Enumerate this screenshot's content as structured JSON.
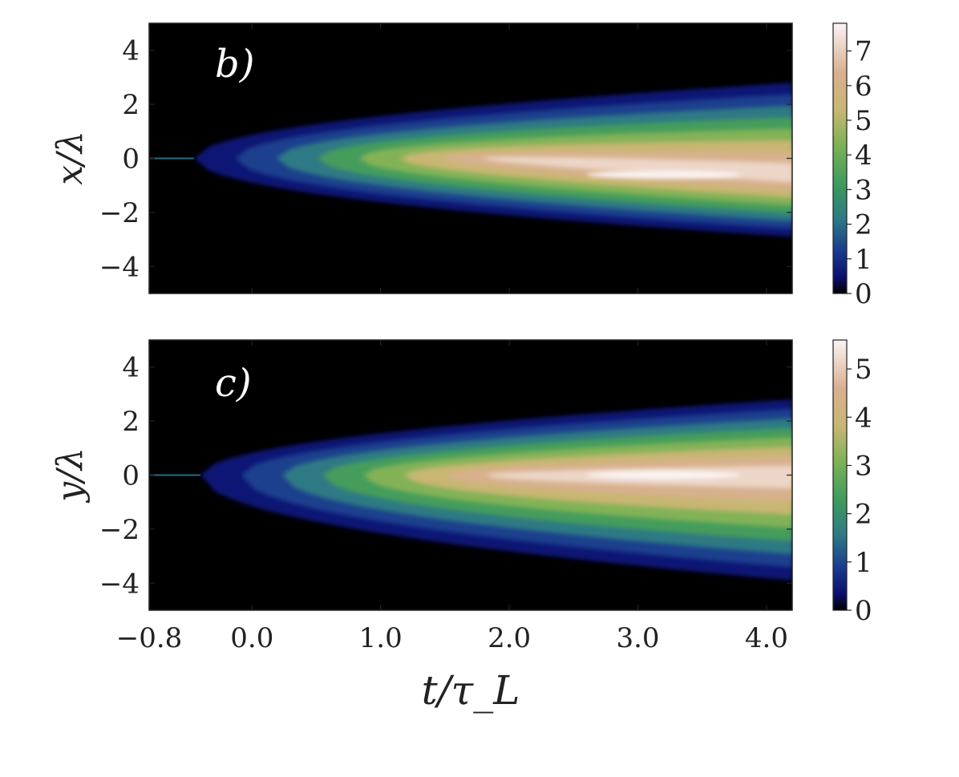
{
  "chart_data": [
    {
      "type": "heatmap",
      "panel_label": "b)",
      "ylabel": "x/λ",
      "xlabel": "",
      "xlim": [
        -0.8,
        4.2
      ],
      "ylim": [
        -5,
        5
      ],
      "x_ticks": [
        -0.8,
        0.0,
        1.0,
        2.0,
        3.0,
        4.0
      ],
      "x_tick_labels": [],
      "y_ticks": [
        4,
        2,
        0,
        -2,
        -4
      ],
      "y_tick_labels": [
        "4",
        "2",
        "0",
        "−2",
        "−4"
      ],
      "colorbar": {
        "min": 0,
        "max": 7.8,
        "ticks": [
          0,
          1,
          2,
          3,
          4,
          5,
          6,
          7
        ],
        "tick_labels": [
          "0",
          "1",
          "2",
          "3",
          "4",
          "5",
          "6",
          "7"
        ]
      },
      "spread": {
        "onset_t": -0.45,
        "half_width_top_at_end": 2.8,
        "half_width_bottom_at_end": 2.9,
        "peak_y": -0.6,
        "peak_value": 7.8
      },
      "colormap": "gist_earth"
    },
    {
      "type": "heatmap",
      "panel_label": "c)",
      "ylabel": "y/λ",
      "xlabel": "t/τ_L",
      "xlim": [
        -0.8,
        4.2
      ],
      "ylim": [
        -5,
        5
      ],
      "x_ticks": [
        -0.8,
        0.0,
        1.0,
        2.0,
        3.0,
        4.0
      ],
      "x_tick_labels": [
        "−0.8",
        "0.0",
        "1.0",
        "2.0",
        "3.0",
        "4.0"
      ],
      "y_ticks": [
        4,
        2,
        0,
        -2,
        -4
      ],
      "y_tick_labels": [
        "4",
        "2",
        "0",
        "−2",
        "−4"
      ],
      "colorbar": {
        "min": 0,
        "max": 5.6,
        "ticks": [
          0,
          1,
          2,
          3,
          4,
          5
        ],
        "tick_labels": [
          "0",
          "1",
          "2",
          "3",
          "4",
          "5"
        ]
      },
      "spread": {
        "onset_t": -0.4,
        "half_width_top_at_end": 2.8,
        "half_width_bottom_at_end": 3.9,
        "peak_y": 0.0,
        "peak_value": 5.6
      },
      "colormap": "gist_earth"
    }
  ]
}
